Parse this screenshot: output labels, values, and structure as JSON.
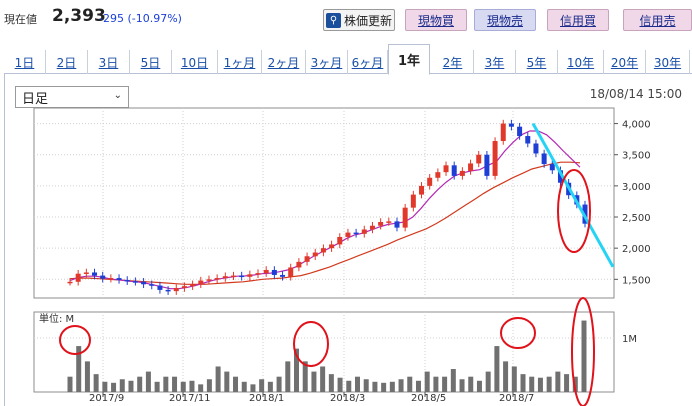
{
  "header": {
    "price_label": "現在値",
    "price_value": "2,393",
    "price_change": "-295 (-10.97%)",
    "buttons": {
      "news": "株価更新",
      "spot_buy": "現物買",
      "spot_sell": "現物売",
      "margin_buy": "信用買",
      "margin_sell": "信用売"
    },
    "news_icon": "search-icon"
  },
  "tabs": [
    {
      "label": "1日",
      "active": false
    },
    {
      "label": "2日",
      "active": false
    },
    {
      "label": "3日",
      "active": false
    },
    {
      "label": "5日",
      "active": false
    },
    {
      "label": "10日",
      "active": false
    },
    {
      "label": "1ヶ月",
      "active": false
    },
    {
      "label": "2ヶ月",
      "active": false
    },
    {
      "label": "3ヶ月",
      "active": false
    },
    {
      "label": "6ヶ月",
      "active": false
    },
    {
      "label": "1年",
      "active": true
    },
    {
      "label": "2年",
      "active": false
    },
    {
      "label": "3年",
      "active": false
    },
    {
      "label": "5年",
      "active": false
    },
    {
      "label": "10年",
      "active": false
    },
    {
      "label": "20年",
      "active": false
    },
    {
      "label": "30年",
      "active": false
    }
  ],
  "chart_controls": {
    "period_select": "日足",
    "datetime": "18/08/14 15:00"
  },
  "chart_data": {
    "type": "candlestick",
    "price_axis": {
      "ticks": [
        "4,000",
        "3,500",
        "3,000",
        "2,500",
        "2,000",
        "1,500"
      ],
      "ylim": [
        1200,
        4250
      ]
    },
    "volume_panel": {
      "unit_label": "単位: M",
      "ticks": [
        "1M"
      ]
    },
    "x_tick_labels": [
      "2017/9",
      "2017/11",
      "2018/1",
      "2018/3",
      "2018/5",
      "2018/7"
    ],
    "price_series": [
      1460,
      1590,
      1610,
      1560,
      1510,
      1520,
      1490,
      1470,
      1460,
      1420,
      1400,
      1330,
      1310,
      1360,
      1390,
      1420,
      1480,
      1500,
      1520,
      1550,
      1560,
      1540,
      1580,
      1600,
      1650,
      1570,
      1540,
      1690,
      1780,
      1870,
      1930,
      2000,
      2060,
      2180,
      2250,
      2230,
      2300,
      2360,
      2420,
      2430,
      2330,
      2650,
      2860,
      3000,
      3130,
      3220,
      3330,
      3160,
      3240,
      3360,
      3500,
      3160,
      3720,
      4000,
      3950,
      3800,
      3680,
      3520,
      3350,
      3250,
      3050,
      2850,
      2700,
      2393
    ],
    "ma_short": [
      1480,
      1530,
      1550,
      1550,
      1530,
      1500,
      1490,
      1470,
      1460,
      1440,
      1410,
      1380,
      1350,
      1350,
      1370,
      1400,
      1440,
      1480,
      1510,
      1530,
      1550,
      1555,
      1570,
      1590,
      1600,
      1620,
      1650,
      1700,
      1780,
      1860,
      1930,
      2000,
      2070,
      2150,
      2210,
      2240,
      2290,
      2340,
      2380,
      2400,
      2420,
      2500,
      2640,
      2800,
      2940,
      3060,
      3160,
      3210,
      3240,
      3260,
      3330,
      3390,
      3560,
      3700,
      3820,
      3880,
      3880,
      3820,
      3700,
      3560,
      3430,
      3300
    ],
    "ma_long": [
      1510,
      1520,
      1520,
      1510,
      1500,
      1490,
      1480,
      1470,
      1460,
      1450,
      1440,
      1430,
      1420,
      1420,
      1420,
      1430,
      1440,
      1450,
      1460,
      1480,
      1500,
      1510,
      1520,
      1540,
      1560,
      1600,
      1650,
      1700,
      1760,
      1820,
      1880,
      1940,
      2000,
      2060,
      2130,
      2190,
      2250,
      2310,
      2390,
      2480,
      2580,
      2680,
      2780,
      2880,
      2970,
      3050,
      3130,
      3200,
      3270,
      3310,
      3350,
      3380,
      3380,
      3370
    ],
    "trendline": {
      "from": 4000,
      "to": 1700
    },
    "volume_series": [
      0.3,
      0.9,
      0.6,
      0.35,
      0.2,
      0.18,
      0.25,
      0.22,
      0.3,
      0.4,
      0.2,
      0.3,
      0.3,
      0.2,
      0.22,
      0.15,
      0.25,
      0.5,
      0.4,
      0.3,
      0.2,
      0.15,
      0.25,
      0.2,
      0.3,
      0.6,
      0.85,
      0.6,
      0.4,
      0.5,
      0.35,
      0.28,
      0.22,
      0.3,
      0.25,
      0.2,
      0.18,
      0.2,
      0.25,
      0.3,
      0.22,
      0.4,
      0.3,
      0.3,
      0.45,
      0.25,
      0.3,
      0.22,
      0.4,
      0.9,
      0.6,
      0.5,
      0.35,
      0.3,
      0.28,
      0.3,
      0.4,
      0.35,
      0.3,
      1.4
    ]
  },
  "colors": {
    "up": "#e0392b",
    "down": "#1e3fd6",
    "ma_short": "#b428b4",
    "ma_long": "#d23a1e",
    "trendline": "#25d4f5",
    "annotation": "#e0121a",
    "volume": "#707070"
  }
}
